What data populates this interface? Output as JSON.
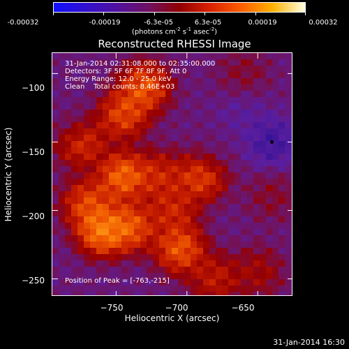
{
  "colorbar": {
    "tick_labels": [
      "-0.00032",
      "-0.00019",
      "-6.3e-05",
      "6.3e-05",
      "0.00019",
      "0.00032"
    ],
    "units_text": "(photons cm",
    "units_exp1": "-2",
    "units_mid": " s",
    "units_exp2": "-1",
    "units_mid2": " asec",
    "units_exp3": "-2",
    "units_end": ")"
  },
  "chart_data": {
    "type": "heatmap",
    "title": "Reconstructed RHESSI Image",
    "xlabel": "Heliocentric X (arcsec)",
    "ylabel": "Heliocentric Y (arcsec)",
    "xlim": [
      -795,
      -625
    ],
    "ylim": [
      -263,
      -85
    ],
    "x_ticks": [
      -750,
      -700,
      -650
    ],
    "y_ticks": [
      -100,
      -150,
      -200,
      -250
    ],
    "x_tick_labels": [
      "−750",
      "−700",
      "−650"
    ],
    "y_tick_labels": [
      "−100",
      "−150",
      "−200",
      "−250"
    ],
    "color_range": [
      -0.00032,
      0.00032
    ],
    "peak": [
      -763,
      -215
    ],
    "bright_regions": [
      {
        "x": -745,
        "y": -175,
        "level": 0.9
      },
      {
        "x": -730,
        "y": -110,
        "level": 0.85
      },
      {
        "x": -745,
        "y": -130,
        "level": 0.8
      },
      {
        "x": -775,
        "y": -150,
        "level": 0.75
      },
      {
        "x": -690,
        "y": -175,
        "level": 0.8
      },
      {
        "x": -720,
        "y": -175,
        "level": 0.7
      },
      {
        "x": -760,
        "y": -215,
        "level": 0.95
      },
      {
        "x": -740,
        "y": -212,
        "level": 0.85
      },
      {
        "x": -705,
        "y": -228,
        "level": 0.85
      },
      {
        "x": -770,
        "y": -195,
        "level": 0.8
      },
      {
        "x": -710,
        "y": -200,
        "level": 0.7
      },
      {
        "x": -680,
        "y": -250,
        "level": 0.65
      },
      {
        "x": -650,
        "y": -245,
        "level": 0.55
      },
      {
        "x": -640,
        "y": -190,
        "level": 0.45
      },
      {
        "x": -660,
        "y": -100,
        "level": 0.45
      }
    ],
    "dark_regions": [
      {
        "x": -640,
        "y": -150,
        "level": 0.05
      },
      {
        "x": -660,
        "y": -130,
        "level": 0.2
      },
      {
        "x": -785,
        "y": -135,
        "level": 0.3
      },
      {
        "x": -680,
        "y": -155,
        "level": 0.3
      }
    ],
    "info_lines": [
      "31-Jan-2014 02:31:08.000 to 02:35:00.000",
      "Detectors: 3F 5F 6F 7F 8F 9F, Att 0",
      "Energy Range: 12.0 - 25.0 keV",
      "Clean    Total counts: 8.46E+03"
    ],
    "peak_label": "Position of Peak = [-763,-215]"
  },
  "timestamp": "31-Jan-2014 16:30"
}
